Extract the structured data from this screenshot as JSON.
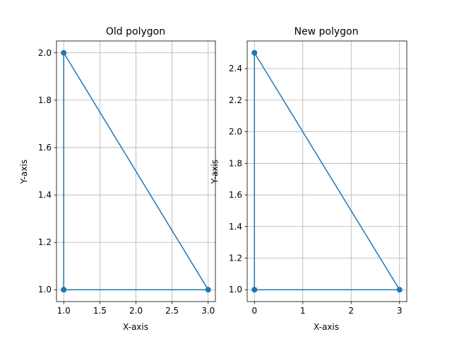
{
  "figure": {
    "background": "#ffffff"
  },
  "chart_data": [
    {
      "type": "line",
      "title": "Old polygon",
      "xlabel": "X-axis",
      "ylabel": "Y-axis",
      "xlim": [
        0.9,
        3.1
      ],
      "ylim": [
        0.95,
        2.05
      ],
      "xticks": [
        1.0,
        1.5,
        2.0,
        2.5,
        3.0
      ],
      "xtick_labels": [
        "1.0",
        "1.5",
        "2.0",
        "2.5",
        "3.0"
      ],
      "yticks": [
        1.0,
        1.2,
        1.4,
        1.6,
        1.8,
        2.0
      ],
      "ytick_labels": [
        "1.0",
        "1.2",
        "1.4",
        "1.6",
        "1.8",
        "2.0"
      ],
      "grid": true,
      "color": "#1f77b4",
      "series": [
        {
          "x": [
            1,
            3,
            1,
            1
          ],
          "y": [
            1,
            1,
            2,
            1
          ],
          "marker": "circle"
        }
      ]
    },
    {
      "type": "line",
      "title": "New polygon",
      "xlabel": "X-axis",
      "ylabel": "Y-axis",
      "xlim": [
        -0.15,
        3.15
      ],
      "ylim": [
        0.925,
        2.575
      ],
      "xticks": [
        0,
        1,
        2,
        3
      ],
      "xtick_labels": [
        "0",
        "1",
        "2",
        "3"
      ],
      "yticks": [
        1.0,
        1.2,
        1.4,
        1.6,
        1.8,
        2.0,
        2.2,
        2.4
      ],
      "ytick_labels": [
        "1.0",
        "1.2",
        "1.4",
        "1.6",
        "1.8",
        "2.0",
        "2.2",
        "2.4"
      ],
      "grid": true,
      "color": "#1f77b4",
      "series": [
        {
          "x": [
            0,
            3,
            0,
            0
          ],
          "y": [
            1,
            1,
            2.5,
            1
          ],
          "marker": "circle"
        }
      ]
    }
  ]
}
